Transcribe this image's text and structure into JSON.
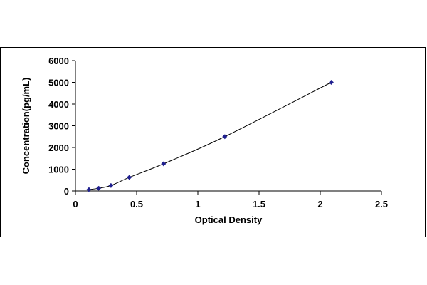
{
  "chart_data": {
    "type": "scatter",
    "title": "",
    "xlabel": "Optical Density",
    "ylabel": "Concentration(pg/mL)",
    "xlim": [
      0,
      2.5
    ],
    "ylim": [
      0,
      6000
    ],
    "x_ticks": [
      "0",
      "0.5",
      "1",
      "1.5",
      "2",
      "2.5"
    ],
    "y_ticks": [
      "0",
      "1000",
      "2000",
      "3000",
      "4000",
      "5000",
      "6000"
    ],
    "grid": false,
    "legend": "none",
    "series": [
      {
        "marker": "diamond",
        "color": "#1f1f8f",
        "line": "smooth",
        "x": [
          0.11,
          0.19,
          0.29,
          0.44,
          0.72,
          1.22,
          2.09
        ],
        "y": [
          62.5,
          125,
          250,
          625,
          1250,
          2500,
          5000
        ]
      }
    ]
  }
}
